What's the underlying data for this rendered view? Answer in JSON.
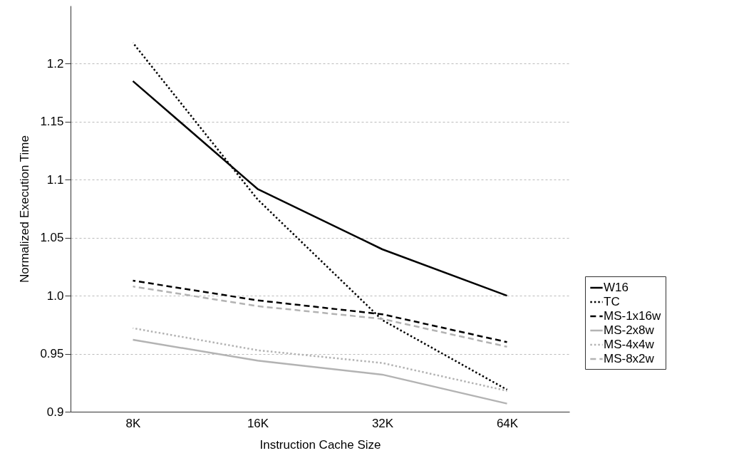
{
  "chart_data": {
    "type": "line",
    "xlabel": "Instruction Cache Size",
    "ylabel": "Normalized Execution Time",
    "categories": [
      "8K",
      "16K",
      "32K",
      "64K"
    ],
    "ylim": [
      0.9,
      1.25
    ],
    "yticks": [
      {
        "value": 0.9,
        "label": "0.9"
      },
      0.95,
      {
        "value": 1,
        "label": "1.0"
      },
      1.05,
      {
        "value": 1.1,
        "label": "1.1"
      },
      1.15,
      {
        "value": 1.2,
        "label": "1.2"
      }
    ],
    "grid": "y",
    "legend": "bottom right",
    "marker": "none",
    "series": [
      {
        "name": "W16",
        "color": "#000000",
        "line_style": "solid",
        "values": [
          1.185,
          1.092,
          1.04,
          1.0
        ]
      },
      {
        "name": "TC",
        "color": "#000000",
        "line_style": "dotted",
        "values": [
          1.218,
          1.083,
          0.979,
          0.919
        ]
      },
      {
        "name": "MS-1x16w",
        "color": "#000000",
        "line_style": "dashed",
        "values": [
          1.013,
          0.996,
          0.984,
          0.96
        ]
      },
      {
        "name": "MS-2x8w",
        "color": "#b3b3b3",
        "line_style": "solid",
        "values": [
          0.962,
          0.944,
          0.932,
          0.907
        ]
      },
      {
        "name": "MS-4x4w",
        "color": "#b3b3b3",
        "line_style": "dotted",
        "values": [
          0.972,
          0.953,
          0.942,
          0.918
        ]
      },
      {
        "name": "MS-8x2w",
        "color": "#b3b3b3",
        "line_style": "dashed",
        "values": [
          1.008,
          0.991,
          0.98,
          0.956
        ]
      }
    ]
  }
}
